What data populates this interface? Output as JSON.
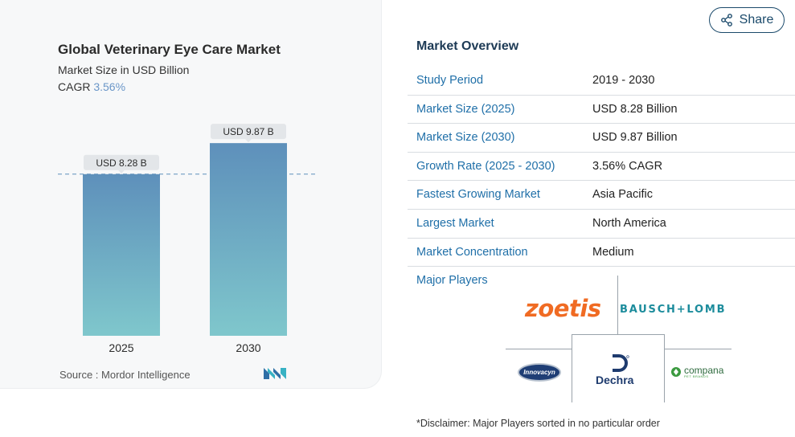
{
  "chart_data": {
    "type": "bar",
    "title": "Global Veterinary Eye Care Market",
    "subtitle": "Market Size in USD Billion",
    "cagr_label": "CAGR",
    "cagr_value": "3.56%",
    "categories": [
      "2025",
      "2030"
    ],
    "values": [
      8.28,
      9.87
    ],
    "data_labels": [
      "USD 8.28 B",
      "USD 9.87 B"
    ],
    "colors": {
      "bar_top": "#5e90bb",
      "bar_bottom": "#7fc7cc",
      "accent": "#6a96c8"
    }
  },
  "source": "Source :  Mordor Intelligence",
  "share_label": "Share",
  "overview": {
    "title": "Market Overview",
    "rows": [
      {
        "label": "Study Period",
        "value": "2019 - 2030"
      },
      {
        "label": "Market Size (2025)",
        "value": "USD 8.28 Billion"
      },
      {
        "label": "Market Size (2030)",
        "value": "USD 9.87 Billion"
      },
      {
        "label": "Growth Rate (2025 - 2030)",
        "value": "3.56% CAGR"
      },
      {
        "label": "Fastest Growing Market",
        "value": "Asia Pacific"
      },
      {
        "label": "Largest Market",
        "value": "North America"
      },
      {
        "label": "Market Concentration",
        "value": "Medium"
      }
    ],
    "major_players_label": "Major Players",
    "players": [
      "zoetis",
      "BAUSCH+LOMB",
      "Innovacyn",
      "Dechra",
      "compana"
    ],
    "player_subtext": "PET BRANDS"
  },
  "disclaimer": "*Disclaimer: Major Players sorted in no particular order"
}
